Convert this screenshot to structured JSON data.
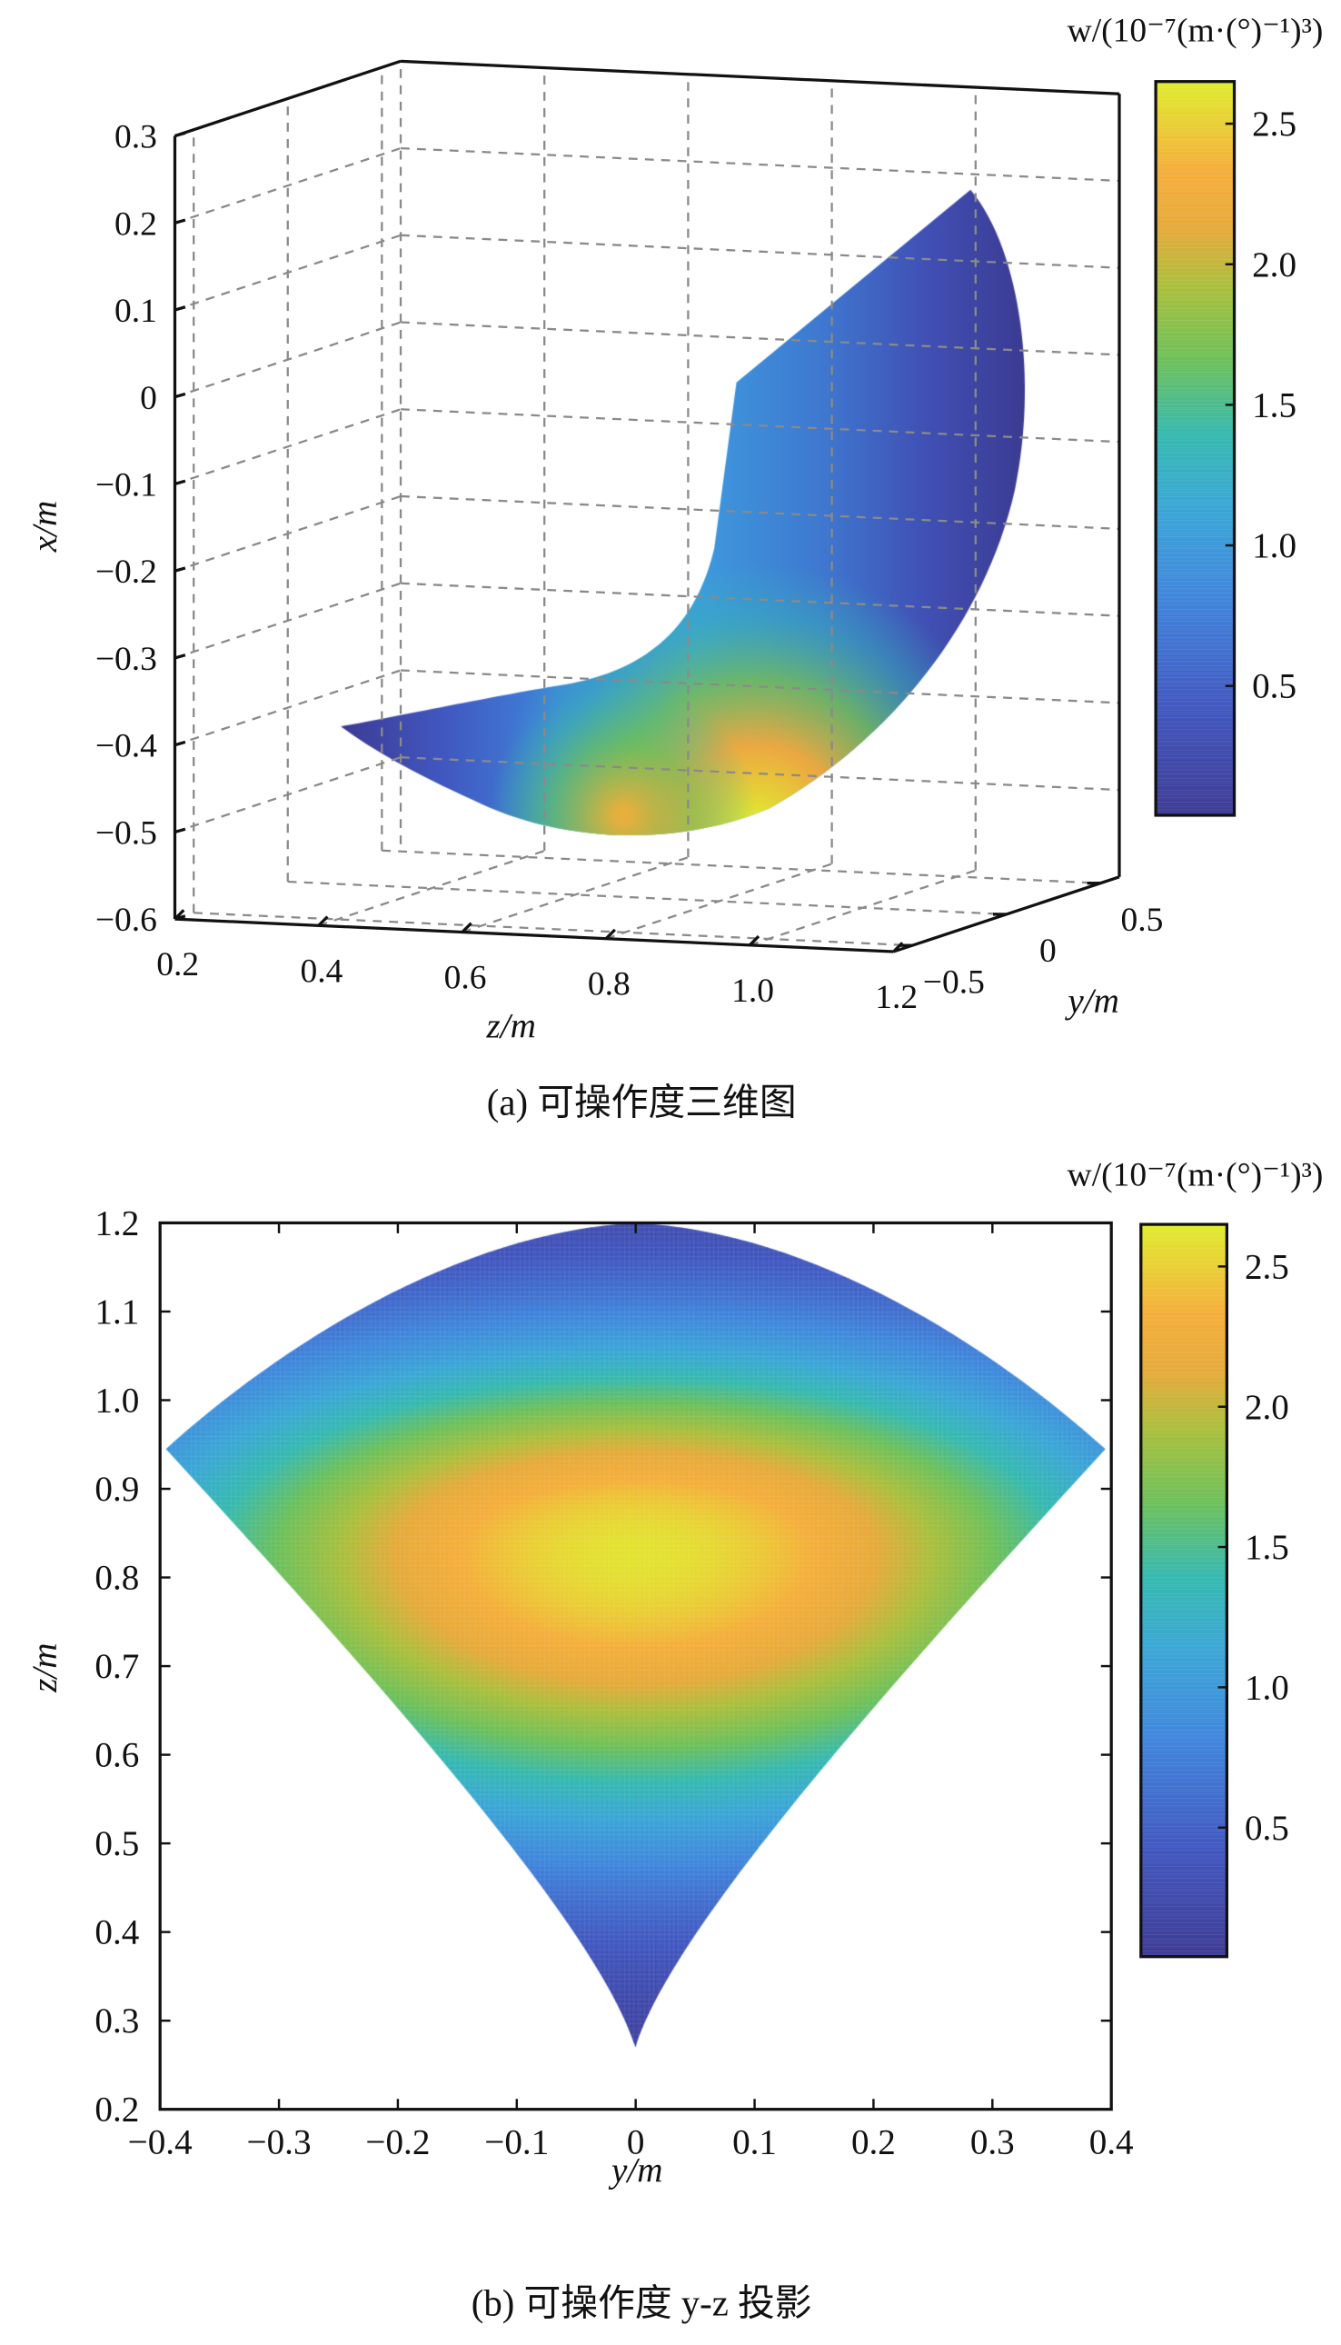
{
  "chart_data": [
    {
      "type": "surface",
      "title": "",
      "caption": "(a) 可操作度三维图",
      "xlabel": "z/m",
      "ylabel": "y/m",
      "zlabel": "x/m",
      "z_axis_ticks": [
        "0.2",
        "0.4",
        "0.6",
        "0.8",
        "1.0",
        "1.2"
      ],
      "y_axis_ticks": [
        "−0.5",
        "0",
        "0.5"
      ],
      "x_axis_ticks": [
        "0.3",
        "0.2",
        "0.1",
        "0",
        "−0.1",
        "−0.2",
        "−0.3",
        "−0.4",
        "−0.5",
        "−0.6"
      ],
      "zlim": [
        0.2,
        1.2
      ],
      "ylim": [
        -0.6,
        0.6
      ],
      "xlim": [
        -0.6,
        0.3
      ],
      "grid": true,
      "colorbar": {
        "label": "w/(10⁻⁷(m·(°)⁻¹)³)",
        "ticks": [
          "2.5",
          "2.0",
          "1.5",
          "1.0",
          "0.5"
        ],
        "range": [
          0.04,
          2.65
        ]
      },
      "colormap": "parula"
    },
    {
      "type": "heatmap",
      "title": "",
      "caption": "(b) 可操作度 y-z 投影",
      "xlabel": "y/m",
      "ylabel": "z/m",
      "xlim": [
        -0.4,
        0.4
      ],
      "ylim": [
        0.2,
        1.2
      ],
      "x_ticks": [
        "−0.4",
        "−0.3",
        "−0.2",
        "−0.1",
        "0",
        "0.1",
        "0.2",
        "0.3",
        "0.4"
      ],
      "y_ticks": [
        "1.2",
        "1.1",
        "1.0",
        "0.9",
        "0.8",
        "0.7",
        "0.6",
        "0.5",
        "0.4",
        "0.3",
        "0.2"
      ],
      "region": {
        "bottom_tip": [
          0,
          0.27
        ],
        "left_corner": [
          -0.395,
          0.945
        ],
        "right_corner": [
          0.395,
          0.945
        ],
        "top": [
          0,
          1.2
        ]
      },
      "peak": {
        "y": 0,
        "z": 0.83,
        "w": 2.6
      },
      "colorbar": {
        "label": "w/(10⁻⁷(m·(°)⁻¹)³)",
        "ticks": [
          "2.5",
          "2.0",
          "1.5",
          "1.0",
          "0.5"
        ],
        "range": [
          0.04,
          2.65
        ]
      },
      "colormap": "parula"
    }
  ],
  "colors": {
    "axis": "#111111",
    "grid": "#888888"
  }
}
